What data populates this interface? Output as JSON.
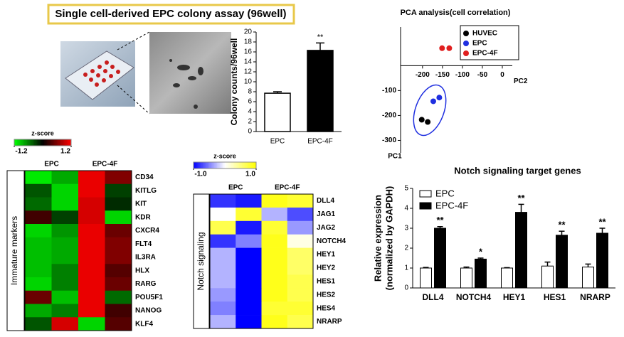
{
  "title": "Single cell-derived EPC colony assay (96well)",
  "chart_data": [
    {
      "type": "bar",
      "categories": [
        "EPC",
        "EPC-4F"
      ],
      "values": [
        7.7,
        16.3
      ],
      "errors": [
        0.3,
        1.5
      ],
      "colors": [
        "#ffffff",
        "#000000"
      ],
      "annotations": [
        null,
        "**"
      ],
      "y_label": "Colony counts/96well",
      "ylim": [
        0,
        20
      ],
      "yticks": [
        0,
        2,
        4,
        6,
        8,
        10,
        12,
        14,
        16,
        18,
        20
      ]
    },
    {
      "type": "scatter",
      "title": "PCA analysis(cell correlation)",
      "x_label": "PC2",
      "y_label": "PC1",
      "xlim": [
        -255,
        25
      ],
      "ylim": [
        -350,
        155
      ],
      "xticks": [
        -200,
        -150,
        -100,
        -50,
        0
      ],
      "yticks": [
        -100,
        -200,
        -300
      ],
      "legend": "upper right",
      "series": [
        {
          "name": "HUVEC",
          "color": "#000000",
          "x": [
            -202,
            -187
          ],
          "y": [
            -217,
            -226
          ]
        },
        {
          "name": "EPC",
          "color": "#1f2fe0",
          "x": [
            -173,
            -158
          ],
          "y": [
            -143,
            -128
          ]
        },
        {
          "name": "EPC-4F",
          "color": "#e01f1f",
          "x": [
            -151,
            -133
          ],
          "y": [
            70,
            70
          ]
        }
      ]
    },
    {
      "type": "heatmap",
      "colorbar_title": "z-score",
      "clim": [
        -1.2,
        1.2
      ],
      "colorbar_ticks": [
        -1.2,
        1.2
      ],
      "colormap": [
        "#00ff00",
        "#000000",
        "#ff0000"
      ],
      "column_groups": [
        "EPC",
        "EPC-4F"
      ],
      "row_group": "Immature markers",
      "rows": [
        "CD34",
        "KITLG",
        "KIT",
        "KDR",
        "CXCR4",
        "FLT4",
        "IL3RA",
        "HLX",
        "RARG",
        "POU5F1",
        "NANOG",
        "KLF4"
      ],
      "values": [
        [
          -1.1,
          -0.8,
          1.1,
          0.6
        ],
        [
          -0.4,
          -1.0,
          1.1,
          -0.3
        ],
        [
          -0.5,
          -1.0,
          1.0,
          -0.2
        ],
        [
          0.3,
          -0.3,
          1.0,
          -1.0
        ],
        [
          -1.0,
          -0.7,
          1.1,
          0.5
        ],
        [
          -0.9,
          -0.8,
          1.1,
          0.6
        ],
        [
          -0.9,
          -0.8,
          1.1,
          0.6
        ],
        [
          -0.9,
          -0.6,
          1.1,
          0.4
        ],
        [
          -1.0,
          -0.6,
          1.1,
          0.5
        ],
        [
          0.5,
          -0.9,
          1.1,
          -0.5
        ],
        [
          -0.8,
          -0.6,
          1.1,
          0.3
        ],
        [
          -0.4,
          1.0,
          -1.0,
          0.4
        ]
      ]
    },
    {
      "type": "heatmap",
      "colorbar_title": "z-score",
      "clim": [
        -1,
        1
      ],
      "colorbar_ticks": [
        {
          "value": -1,
          "label": "-1.0"
        },
        {
          "value": 1,
          "label": "1.0"
        }
      ],
      "colormap": [
        "#0000ff",
        "#ffffff",
        "#ffff00"
      ],
      "column_groups": [
        "EPC",
        "EPC-4F"
      ],
      "row_group": "Notch signaling",
      "rows": [
        "DLL4",
        "JAG1",
        "JAG2",
        "NOTCH4",
        "HEY1",
        "HEY2",
        "HES1",
        "HES2",
        "HES4",
        "NRARP"
      ],
      "values": [
        [
          -0.8,
          -0.9,
          0.9,
          0.8
        ],
        [
          0.0,
          0.8,
          -0.3,
          -0.7
        ],
        [
          0.7,
          -0.9,
          0.8,
          -0.4
        ],
        [
          -0.8,
          -0.5,
          0.9,
          0.1
        ],
        [
          -0.3,
          -1.0,
          0.9,
          0.6
        ],
        [
          -0.3,
          -1.0,
          0.9,
          0.6
        ],
        [
          -0.3,
          -1.0,
          0.9,
          0.7
        ],
        [
          -0.4,
          -1.0,
          0.9,
          0.7
        ],
        [
          -0.5,
          -1.0,
          0.8,
          0.8
        ],
        [
          -0.3,
          -1.0,
          0.9,
          0.7
        ]
      ]
    },
    {
      "type": "grouped_bar",
      "title": "Notch signaling target genes",
      "y_label": [
        "Relative expression",
        "(normalized by GAPDH)"
      ],
      "categories": [
        "DLL4",
        "NOTCH4",
        "HEY1",
        "HES1",
        "NRARP"
      ],
      "series": [
        {
          "name": "EPC",
          "color": "#ffffff",
          "values": [
            1.0,
            1.0,
            1.0,
            1.1,
            1.05
          ],
          "errors": [
            0.03,
            0.05,
            0.02,
            0.2,
            0.15
          ]
        },
        {
          "name": "EPC-4F",
          "color": "#000000",
          "values": [
            3.0,
            1.45,
            3.8,
            2.65,
            2.75
          ],
          "errors": [
            0.08,
            0.05,
            0.4,
            0.2,
            0.25
          ]
        }
      ],
      "annotations": [
        "**",
        "*",
        "**",
        "**",
        "**"
      ],
      "legend": "upper left",
      "ylim": [
        0,
        5
      ],
      "yticks": [
        0,
        1,
        2,
        3,
        4,
        5
      ]
    }
  ]
}
